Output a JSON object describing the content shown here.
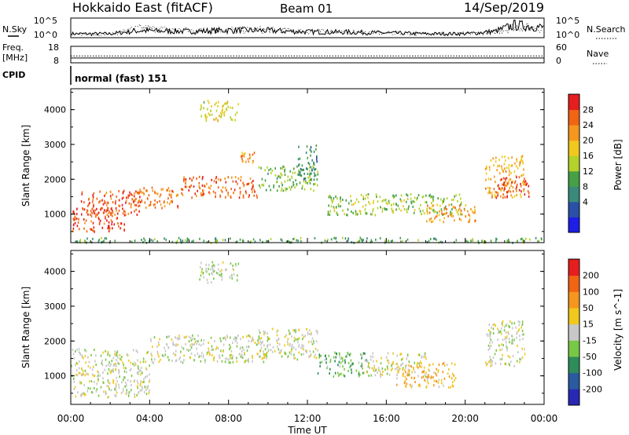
{
  "header": {
    "station": "Hokkaido East (fitACF)",
    "beam": "Beam 01",
    "date": "14/Sep/2019"
  },
  "noise_panel": {
    "left_label": "N.Sky",
    "right_label": "N.Search",
    "left_ticks": [
      "10^5",
      "10^0"
    ],
    "right_ticks": [
      "10^5",
      "10^0"
    ]
  },
  "freq_panel": {
    "left_label_line1": "Freq.",
    "left_label_line2": "[MHz]",
    "left_ticks": [
      "18",
      "8"
    ],
    "right_label": "Nave",
    "right_ticks": [
      "60",
      "0"
    ]
  },
  "cpid_panel": {
    "label": "CPID",
    "value": "normal (fast) 151"
  },
  "power_panel": {
    "ylabel": "Slant Range [km]",
    "yticks": [
      "4000",
      "3000",
      "2000",
      "1000"
    ],
    "colorbar_label": "Power [dB]",
    "colorbar_ticks": [
      "28",
      "24",
      "20",
      "16",
      "12",
      "8",
      "4"
    ],
    "colors": [
      "#1e1ee6",
      "#2a50a8",
      "#3a8a7a",
      "#46a046",
      "#b4d22a",
      "#f0c81e",
      "#f5961e",
      "#f06414",
      "#e61e1e"
    ]
  },
  "velocity_panel": {
    "ylabel": "Slant Range [km]",
    "yticks": [
      "4000",
      "3000",
      "2000",
      "1000"
    ],
    "colorbar_label": "Velocity [m s^-1]",
    "colorbar_ticks": [
      "200",
      "100",
      "50",
      "15",
      "-15",
      "-50",
      "-100",
      "-200"
    ],
    "colors": [
      "#2828b4",
      "#2a5aa0",
      "#2e8c5a",
      "#78c846",
      "#c8c8c8",
      "#f0c81e",
      "#f5961e",
      "#f06414",
      "#e61e1e"
    ]
  },
  "x_axis": {
    "label": "Time UT",
    "ticks": [
      "00:00",
      "04:00",
      "08:00",
      "12:00",
      "16:00",
      "20:00",
      "00:00"
    ]
  },
  "chart_data": [
    {
      "type": "heatmap",
      "title": "Power [dB]",
      "xlabel": "",
      "ylabel": "Slant Range [km]",
      "xlim": [
        0,
        24
      ],
      "ylim": [
        180,
        4600
      ],
      "clim": [
        0,
        32
      ],
      "regions": [
        {
          "t": [
            0.0,
            2.8
          ],
          "r": [
            500,
            1200
          ],
          "value": 28
        },
        {
          "t": [
            0.5,
            3.5
          ],
          "r": [
            1000,
            1700
          ],
          "value": 27
        },
        {
          "t": [
            3.0,
            5.5
          ],
          "r": [
            1200,
            1800
          ],
          "value": 25
        },
        {
          "t": [
            5.5,
            9.5
          ],
          "r": [
            1500,
            2100
          ],
          "value": 26
        },
        {
          "t": [
            8.6,
            9.3
          ],
          "r": [
            2500,
            2800
          ],
          "value": 24
        },
        {
          "t": [
            6.5,
            8.5
          ],
          "r": [
            3700,
            4300
          ],
          "value": 18
        },
        {
          "t": [
            9.5,
            12.5
          ],
          "r": [
            1700,
            2400
          ],
          "value": 14
        },
        {
          "t": [
            11.5,
            12.5
          ],
          "r": [
            2000,
            3000
          ],
          "value": 10
        },
        {
          "t": [
            13.0,
            20.0
          ],
          "r": [
            1000,
            1600
          ],
          "value": 15
        },
        {
          "t": [
            18.0,
            20.5
          ],
          "r": [
            800,
            1300
          ],
          "value": 23
        },
        {
          "t": [
            21.0,
            23.0
          ],
          "r": [
            1500,
            2700
          ],
          "value": 22
        },
        {
          "t": [
            21.5,
            23.2
          ],
          "r": [
            1500,
            2100
          ],
          "value": 28
        },
        {
          "t": [
            0.0,
            24.0
          ],
          "r": [
            200,
            350
          ],
          "value": 12
        }
      ]
    },
    {
      "type": "heatmap",
      "title": "Velocity [m s^-1]",
      "xlabel": "Time UT",
      "ylabel": "Slant Range [km]",
      "xlim": [
        0,
        24
      ],
      "ylim": [
        180,
        4600
      ],
      "clim": [
        -200,
        200
      ],
      "regions": [
        {
          "t": [
            0.0,
            4.0
          ],
          "r": [
            400,
            1800
          ],
          "value": 0
        },
        {
          "t": [
            4.0,
            10.0
          ],
          "r": [
            1400,
            2200
          ],
          "value": 0
        },
        {
          "t": [
            6.5,
            8.5
          ],
          "r": [
            3700,
            4300
          ],
          "value": -10
        },
        {
          "t": [
            9.5,
            12.5
          ],
          "r": [
            1500,
            2400
          ],
          "value": 5
        },
        {
          "t": [
            12.5,
            15.0
          ],
          "r": [
            1000,
            1700
          ],
          "value": -60
        },
        {
          "t": [
            15.0,
            18.0
          ],
          "r": [
            1000,
            1700
          ],
          "value": 10
        },
        {
          "t": [
            16.5,
            19.5
          ],
          "r": [
            700,
            1400
          ],
          "value": 55
        },
        {
          "t": [
            21.0,
            23.0
          ],
          "r": [
            1300,
            2600
          ],
          "value": 0
        }
      ]
    },
    {
      "type": "line",
      "title": "N.Sky / N.Search",
      "x_units": "hours UT",
      "x": [
        0,
        2,
        3.5,
        6,
        8,
        10,
        12,
        14,
        16,
        18,
        20,
        21.5,
        22.5,
        24
      ],
      "series": [
        {
          "name": "N.Sky",
          "values": [
            1.0,
            1.0,
            1.8,
            1.6,
            1.9,
            1.8,
            1.5,
            1.4,
            1.2,
            1.0,
            1.0,
            1.6,
            3.2,
            2.6
          ]
        },
        {
          "name": "N.Search",
          "values": [
            0.8,
            0.9,
            2.4,
            1.8,
            2.0,
            2.0,
            1.6,
            1.5,
            1.2,
            1.0,
            1.0,
            1.4,
            2.8,
            2.4
          ]
        }
      ],
      "ylim": [
        0,
        5
      ]
    },
    {
      "type": "line",
      "title": "Freq. / Nave",
      "x_units": "hours UT",
      "x": [
        0,
        24
      ],
      "series": [
        {
          "name": "Freq.",
          "values": [
            10.9,
            10.9
          ]
        },
        {
          "name": "Nave",
          "values": [
            25,
            25
          ]
        }
      ],
      "ylim_freq": [
        8,
        18
      ],
      "ylim_nave": [
        0,
        60
      ]
    }
  ]
}
